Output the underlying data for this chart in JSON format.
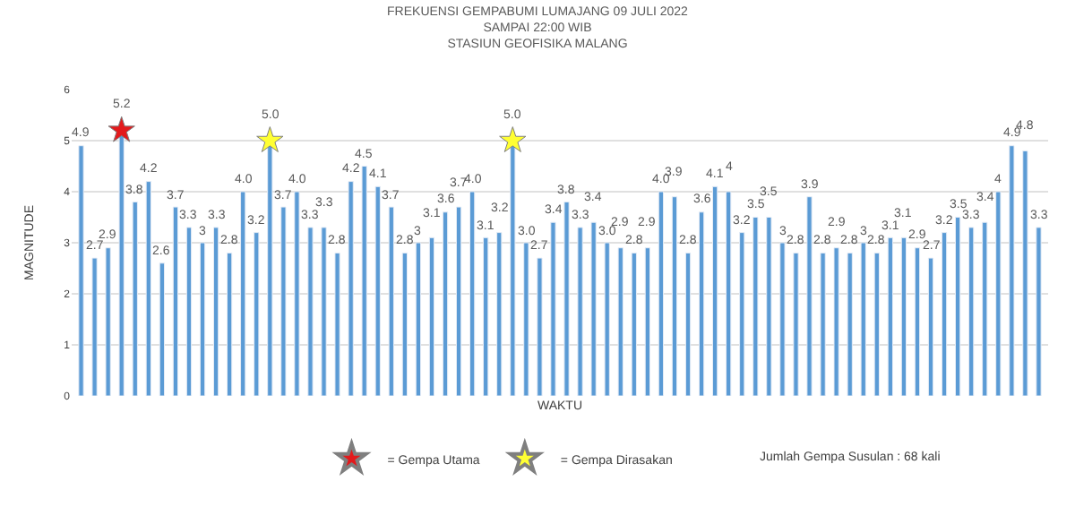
{
  "chart_data": {
    "type": "bar",
    "title": "FREKUENSI GEMPABUMI LUMAJANG 09 JULI 2022\nSAMPAI 22:00 WIB\nSTASIUN GEOFISIKA MALANG",
    "xlabel": "WAKTU",
    "ylabel": "MAGNITUDE",
    "categories": [
      null,
      null,
      null,
      null,
      null,
      null,
      null,
      null,
      null,
      null,
      null,
      null,
      null,
      null,
      null,
      null,
      null,
      null,
      null,
      null,
      null,
      null,
      null,
      null,
      null,
      null,
      null,
      null,
      null,
      null,
      null,
      null,
      null,
      null,
      null,
      null,
      null,
      null,
      null,
      null,
      null,
      null,
      null,
      null,
      null,
      null,
      null,
      null,
      null,
      null,
      null,
      null,
      null,
      null,
      null,
      null,
      null,
      null,
      null,
      null,
      null,
      null,
      null,
      null,
      null,
      null,
      null,
      null,
      null,
      null,
      null,
      null
    ],
    "series": [
      {
        "color": "#5b9bd5",
        "values": [
          4.9,
          2.7,
          2.9,
          5.2,
          3.8,
          4.2,
          2.6,
          3.7,
          3.3,
          3,
          3.3,
          2.8,
          4.0,
          3.2,
          5.0,
          3.7,
          4.0,
          3.3,
          3.3,
          2.8,
          4.2,
          4.5,
          4.1,
          3.7,
          2.8,
          3,
          3.1,
          3.6,
          3.7,
          4.0,
          3.1,
          3.2,
          5.0,
          3.0,
          2.7,
          3.4,
          3.8,
          3.3,
          3.4,
          3.0,
          2.9,
          2.8,
          2.9,
          4.0,
          3.9,
          2.8,
          3.6,
          4.1,
          4,
          3.2,
          3.5,
          3.5,
          3,
          2.8,
          3.9,
          2.8,
          2.9,
          2.8,
          3,
          2.8,
          3.1,
          3.1,
          2.9,
          2.7,
          3.2,
          3.5,
          3.3,
          3.4,
          4,
          4.9,
          4.8,
          3.3
        ],
        "value_labels": [
          "4.9",
          "2.7",
          "2.9",
          "5.2",
          "3.8",
          "4.2",
          "2.6",
          "3.7",
          "3.3",
          "3",
          "3.3",
          "2.8",
          "4.0",
          "3.2",
          "5.0",
          "3.7",
          "4.0",
          "3.3",
          "3.3",
          "2.8",
          "4.2",
          "4.5",
          "4.1",
          "3.7",
          "2.8",
          "3",
          "3.1",
          "3.6",
          "3.7",
          "4.0",
          "3.1",
          "3.2",
          "5.0",
          "3.0",
          "2.7",
          "3.4",
          "3.8",
          "3.3",
          "3.4",
          "3.0",
          "2.9",
          "2.8",
          "2.9",
          "4.0",
          "3.9",
          "2.8",
          "3.6",
          "4.1",
          "4",
          "3.2",
          "3.5",
          "3.5",
          "3",
          "2.8",
          "3.9",
          "2.8",
          "2.9",
          "2.8",
          "3",
          "2.8",
          "3.1",
          "3.1",
          "2.9",
          "2.7",
          "3.2",
          "3.5",
          "3.3",
          "3.4",
          "4",
          "4.9",
          "4.8",
          "3.3"
        ]
      },
      {
        "type": "scatter",
        "name": "= Gempa Utama",
        "color": "#e31a1c",
        "marker": "star",
        "values": [
          null,
          null,
          null,
          5.2,
          null,
          null,
          null,
          null,
          null,
          null,
          null,
          null,
          null,
          null,
          null,
          null,
          null,
          null,
          null,
          null,
          null,
          null,
          null,
          null,
          null,
          null,
          null,
          null,
          null,
          null,
          null,
          null,
          null,
          null,
          null,
          null,
          null,
          null,
          null,
          null,
          null,
          null,
          null,
          null,
          null,
          null,
          null,
          null,
          null,
          null,
          null,
          null,
          null,
          null,
          null,
          null,
          null,
          null,
          null,
          null,
          null,
          null,
          null,
          null,
          null,
          null,
          null,
          null,
          null,
          null,
          null,
          null
        ]
      },
      {
        "type": "scatter",
        "name": "= Gempa Dirasakan",
        "color": "#ffff33",
        "marker": "star",
        "values": [
          null,
          null,
          null,
          null,
          null,
          null,
          null,
          null,
          null,
          null,
          null,
          null,
          null,
          null,
          5.0,
          null,
          null,
          null,
          null,
          null,
          null,
          null,
          null,
          null,
          null,
          null,
          null,
          null,
          null,
          null,
          null,
          null,
          5.0,
          null,
          null,
          null,
          null,
          null,
          null,
          null,
          null,
          null,
          null,
          null,
          null,
          null,
          null,
          null,
          null,
          null,
          null,
          null,
          null,
          null,
          null,
          null,
          null,
          null,
          null,
          null,
          null,
          null,
          null,
          null,
          null,
          null,
          null,
          null,
          null,
          null,
          null,
          null
        ]
      }
    ],
    "ylim": [
      0,
      6
    ],
    "yticks": [
      0,
      1,
      2,
      3,
      4,
      5,
      6
    ],
    "grid": "y",
    "legend": "bottom",
    "tick_labels": "y",
    "annotations": [
      "Jumlah Gempa Susulan : 68 kali"
    ]
  }
}
